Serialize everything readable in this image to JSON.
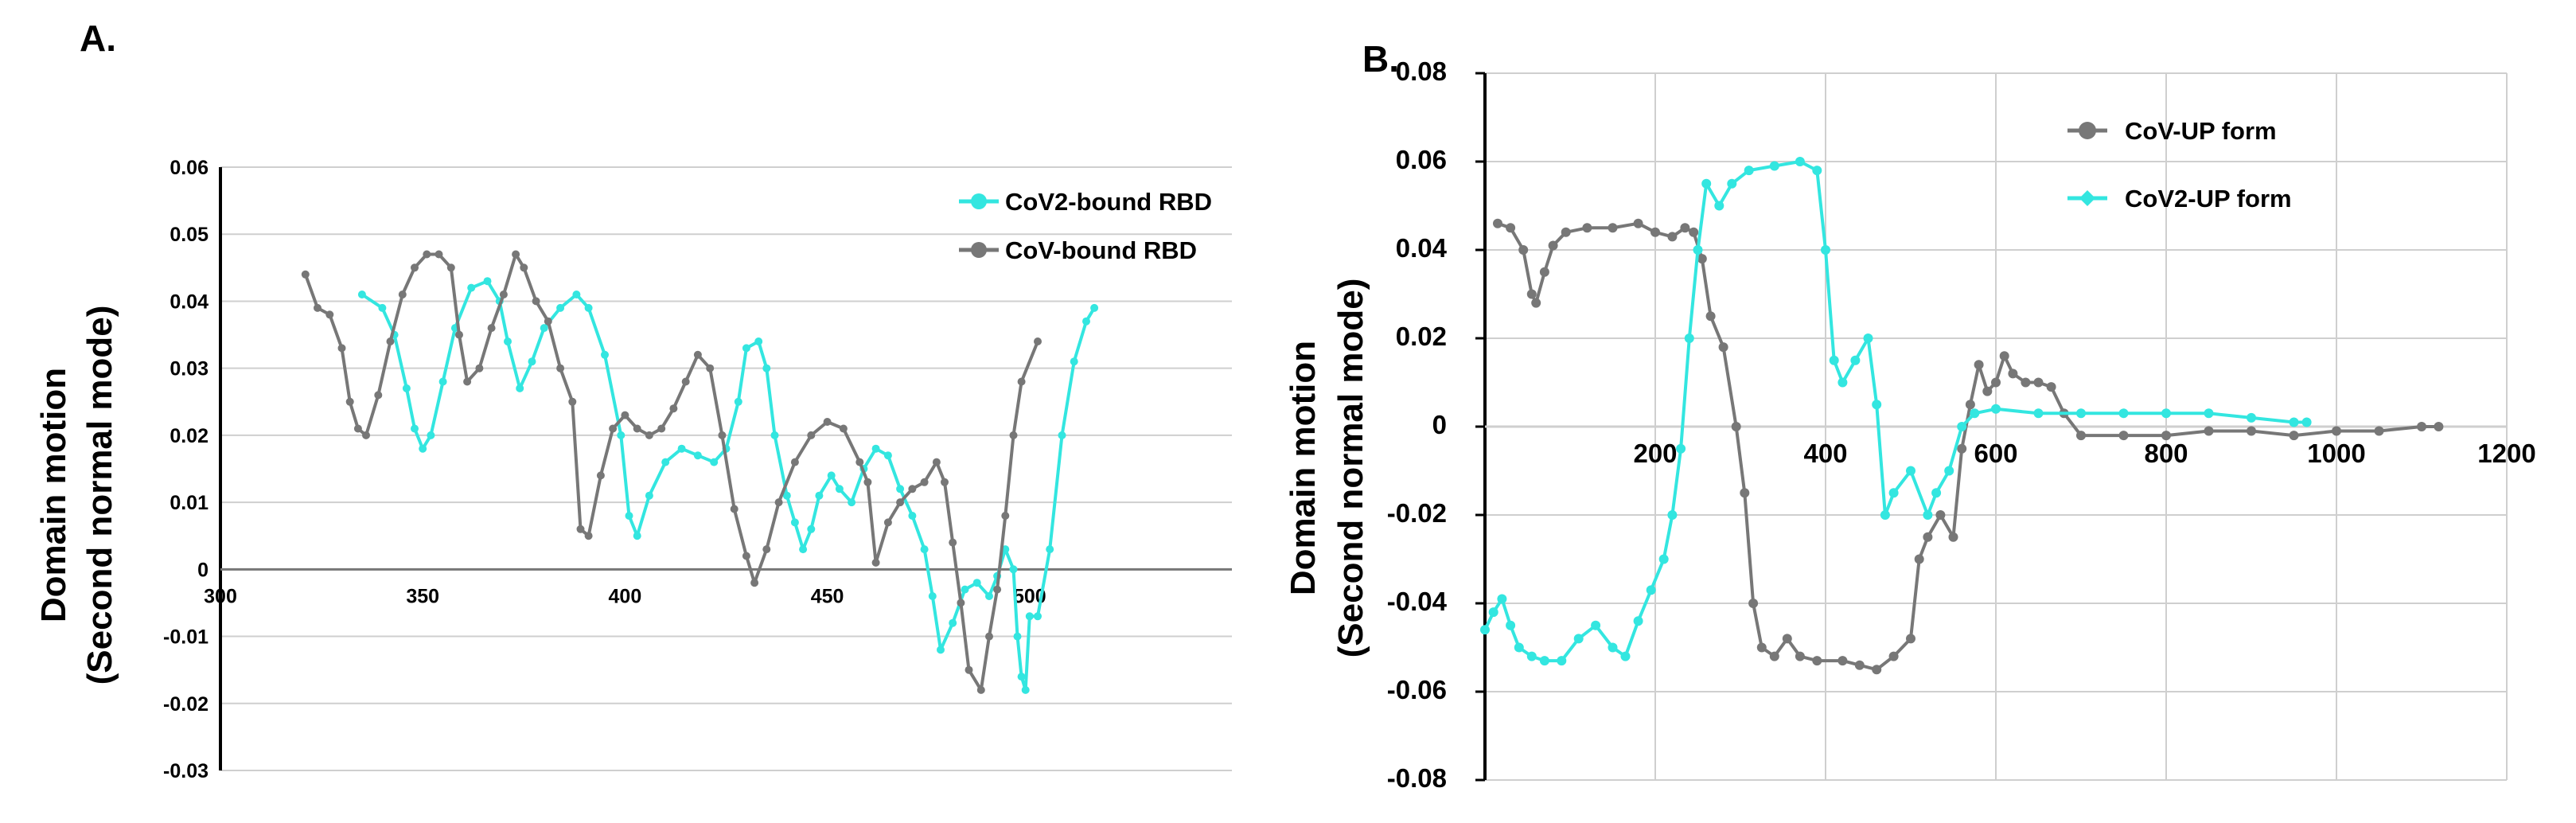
{
  "chart_data": [
    {
      "panel_label": "A.",
      "type": "line",
      "ylabel_line1": "Domain motion",
      "ylabel_line2": "(Second normal mode)",
      "xlim": [
        300,
        550
      ],
      "ylim": [
        -0.03,
        0.06
      ],
      "xticks": [
        "300",
        "350",
        "400",
        "450",
        "500"
      ],
      "yticks": [
        "-0.03",
        "-0.02",
        "-0.01",
        "0",
        "0.01",
        "0.02",
        "0.03",
        "0.04",
        "0.05",
        "0.06"
      ],
      "grid": true,
      "legend_position": "top-right",
      "series": [
        {
          "name": "CoV2-bound RBD",
          "color": "#33e6e0",
          "points": [
            [
              335,
              0.041
            ],
            [
              340,
              0.039
            ],
            [
              343,
              0.035
            ],
            [
              346,
              0.027
            ],
            [
              348,
              0.021
            ],
            [
              350,
              0.018
            ],
            [
              352,
              0.02
            ],
            [
              355,
              0.028
            ],
            [
              358,
              0.036
            ],
            [
              362,
              0.042
            ],
            [
              366,
              0.043
            ],
            [
              369,
              0.04
            ],
            [
              371,
              0.034
            ],
            [
              374,
              0.027
            ],
            [
              377,
              0.031
            ],
            [
              380,
              0.036
            ],
            [
              384,
              0.039
            ],
            [
              388,
              0.041
            ],
            [
              391,
              0.039
            ],
            [
              395,
              0.032
            ],
            [
              399,
              0.02
            ],
            [
              401,
              0.008
            ],
            [
              403,
              0.005
            ],
            [
              406,
              0.011
            ],
            [
              410,
              0.016
            ],
            [
              414,
              0.018
            ],
            [
              418,
              0.017
            ],
            [
              422,
              0.016
            ],
            [
              425,
              0.018
            ],
            [
              428,
              0.025
            ],
            [
              430,
              0.033
            ],
            [
              433,
              0.034
            ],
            [
              435,
              0.03
            ],
            [
              437,
              0.02
            ],
            [
              440,
              0.011
            ],
            [
              442,
              0.007
            ],
            [
              444,
              0.003
            ],
            [
              446,
              0.006
            ],
            [
              448,
              0.011
            ],
            [
              451,
              0.014
            ],
            [
              453,
              0.012
            ],
            [
              456,
              0.01
            ],
            [
              459,
              0.015
            ],
            [
              462,
              0.018
            ],
            [
              465,
              0.017
            ],
            [
              468,
              0.012
            ],
            [
              471,
              0.008
            ],
            [
              474,
              0.003
            ],
            [
              476,
              -0.004
            ],
            [
              478,
              -0.012
            ],
            [
              481,
              -0.008
            ],
            [
              484,
              -0.003
            ],
            [
              487,
              -0.002
            ],
            [
              490,
              -0.004
            ],
            [
              492,
              -0.001
            ],
            [
              494,
              0.003
            ],
            [
              496,
              0.0
            ],
            [
              497,
              -0.01
            ],
            [
              498,
              -0.016
            ],
            [
              499,
              -0.018
            ],
            [
              500,
              -0.007
            ],
            [
              502,
              -0.007
            ],
            [
              505,
              0.003
            ],
            [
              508,
              0.02
            ],
            [
              511,
              0.031
            ],
            [
              514,
              0.037
            ],
            [
              516,
              0.039
            ]
          ]
        },
        {
          "name": "CoV-bound RBD",
          "color": "#777777",
          "points": [
            [
              321,
              0.044
            ],
            [
              324,
              0.039
            ],
            [
              327,
              0.038
            ],
            [
              330,
              0.033
            ],
            [
              332,
              0.025
            ],
            [
              334,
              0.021
            ],
            [
              336,
              0.02
            ],
            [
              339,
              0.026
            ],
            [
              342,
              0.034
            ],
            [
              345,
              0.041
            ],
            [
              348,
              0.045
            ],
            [
              351,
              0.047
            ],
            [
              354,
              0.047
            ],
            [
              357,
              0.045
            ],
            [
              359,
              0.035
            ],
            [
              361,
              0.028
            ],
            [
              364,
              0.03
            ],
            [
              367,
              0.036
            ],
            [
              370,
              0.041
            ],
            [
              373,
              0.047
            ],
            [
              375,
              0.045
            ],
            [
              378,
              0.04
            ],
            [
              381,
              0.037
            ],
            [
              384,
              0.03
            ],
            [
              387,
              0.025
            ],
            [
              389,
              0.006
            ],
            [
              391,
              0.005
            ],
            [
              394,
              0.014
            ],
            [
              397,
              0.021
            ],
            [
              400,
              0.023
            ],
            [
              403,
              0.021
            ],
            [
              406,
              0.02
            ],
            [
              409,
              0.021
            ],
            [
              412,
              0.024
            ],
            [
              415,
              0.028
            ],
            [
              418,
              0.032
            ],
            [
              421,
              0.03
            ],
            [
              424,
              0.02
            ],
            [
              427,
              0.009
            ],
            [
              430,
              0.002
            ],
            [
              432,
              -0.002
            ],
            [
              435,
              0.003
            ],
            [
              438,
              0.01
            ],
            [
              442,
              0.016
            ],
            [
              446,
              0.02
            ],
            [
              450,
              0.022
            ],
            [
              454,
              0.021
            ],
            [
              458,
              0.016
            ],
            [
              460,
              0.013
            ],
            [
              462,
              0.001
            ],
            [
              465,
              0.007
            ],
            [
              468,
              0.01
            ],
            [
              471,
              0.012
            ],
            [
              474,
              0.013
            ],
            [
              477,
              0.016
            ],
            [
              479,
              0.013
            ],
            [
              481,
              0.004
            ],
            [
              483,
              -0.005
            ],
            [
              485,
              -0.015
            ],
            [
              488,
              -0.018
            ],
            [
              490,
              -0.01
            ],
            [
              492,
              -0.003
            ],
            [
              494,
              0.008
            ],
            [
              496,
              0.02
            ],
            [
              498,
              0.028
            ],
            [
              502,
              0.034
            ]
          ]
        }
      ]
    },
    {
      "panel_label": "B.",
      "type": "line",
      "ylabel_line1": "Domain motion",
      "ylabel_line2": "(Second normal mode)",
      "xlim": [
        0,
        1200
      ],
      "ylim": [
        -0.08,
        0.08
      ],
      "xticks": [
        "200",
        "400",
        "600",
        "800",
        "1000",
        "1200"
      ],
      "yticks": [
        "-0.08",
        "-0.06",
        "-0.04",
        "-0.02",
        "0",
        "0.02",
        "0.04",
        "0.06",
        "0.08"
      ],
      "grid": true,
      "legend_position": "top-right",
      "series": [
        {
          "name": "CoV-UP form",
          "color": "#777777",
          "points": [
            [
              15,
              0.046
            ],
            [
              30,
              0.045
            ],
            [
              45,
              0.04
            ],
            [
              55,
              0.03
            ],
            [
              60,
              0.028
            ],
            [
              70,
              0.035
            ],
            [
              80,
              0.041
            ],
            [
              95,
              0.044
            ],
            [
              120,
              0.045
            ],
            [
              150,
              0.045
            ],
            [
              180,
              0.046
            ],
            [
              200,
              0.044
            ],
            [
              220,
              0.043
            ],
            [
              235,
              0.045
            ],
            [
              245,
              0.044
            ],
            [
              255,
              0.038
            ],
            [
              265,
              0.025
            ],
            [
              280,
              0.018
            ],
            [
              295,
              0.0
            ],
            [
              305,
              -0.015
            ],
            [
              315,
              -0.04
            ],
            [
              325,
              -0.05
            ],
            [
              340,
              -0.052
            ],
            [
              355,
              -0.048
            ],
            [
              370,
              -0.052
            ],
            [
              390,
              -0.053
            ],
            [
              420,
              -0.053
            ],
            [
              440,
              -0.054
            ],
            [
              460,
              -0.055
            ],
            [
              480,
              -0.052
            ],
            [
              500,
              -0.048
            ],
            [
              510,
              -0.03
            ],
            [
              520,
              -0.025
            ],
            [
              535,
              -0.02
            ],
            [
              550,
              -0.025
            ],
            [
              560,
              -0.005
            ],
            [
              570,
              0.005
            ],
            [
              580,
              0.014
            ],
            [
              590,
              0.008
            ],
            [
              600,
              0.01
            ],
            [
              610,
              0.016
            ],
            [
              620,
              0.012
            ],
            [
              635,
              0.01
            ],
            [
              650,
              0.01
            ],
            [
              665,
              0.009
            ],
            [
              680,
              0.003
            ],
            [
              700,
              -0.002
            ],
            [
              750,
              -0.002
            ],
            [
              800,
              -0.002
            ],
            [
              850,
              -0.001
            ],
            [
              900,
              -0.001
            ],
            [
              950,
              -0.002
            ],
            [
              1000,
              -0.001
            ],
            [
              1050,
              -0.001
            ],
            [
              1100,
              0.0
            ],
            [
              1120,
              0.0
            ]
          ]
        },
        {
          "name": "CoV2-UP form",
          "color": "#33e6e0",
          "points": [
            [
              0,
              -0.046
            ],
            [
              10,
              -0.042
            ],
            [
              20,
              -0.039
            ],
            [
              30,
              -0.045
            ],
            [
              40,
              -0.05
            ],
            [
              55,
              -0.052
            ],
            [
              70,
              -0.053
            ],
            [
              90,
              -0.053
            ],
            [
              110,
              -0.048
            ],
            [
              130,
              -0.045
            ],
            [
              150,
              -0.05
            ],
            [
              165,
              -0.052
            ],
            [
              180,
              -0.044
            ],
            [
              195,
              -0.037
            ],
            [
              210,
              -0.03
            ],
            [
              220,
              -0.02
            ],
            [
              230,
              -0.005
            ],
            [
              240,
              0.02
            ],
            [
              250,
              0.04
            ],
            [
              260,
              0.055
            ],
            [
              275,
              0.05
            ],
            [
              290,
              0.055
            ],
            [
              310,
              0.058
            ],
            [
              340,
              0.059
            ],
            [
              370,
              0.06
            ],
            [
              390,
              0.058
            ],
            [
              400,
              0.04
            ],
            [
              410,
              0.015
            ],
            [
              420,
              0.01
            ],
            [
              435,
              0.015
            ],
            [
              450,
              0.02
            ],
            [
              460,
              0.005
            ],
            [
              470,
              -0.02
            ],
            [
              480,
              -0.015
            ],
            [
              500,
              -0.01
            ],
            [
              520,
              -0.02
            ],
            [
              530,
              -0.015
            ],
            [
              545,
              -0.01
            ],
            [
              560,
              0.0
            ],
            [
              575,
              0.003
            ],
            [
              600,
              0.004
            ],
            [
              650,
              0.003
            ],
            [
              700,
              0.003
            ],
            [
              750,
              0.003
            ],
            [
              800,
              0.003
            ],
            [
              850,
              0.003
            ],
            [
              900,
              0.002
            ],
            [
              950,
              0.001
            ],
            [
              965,
              0.001
            ]
          ]
        }
      ]
    }
  ]
}
